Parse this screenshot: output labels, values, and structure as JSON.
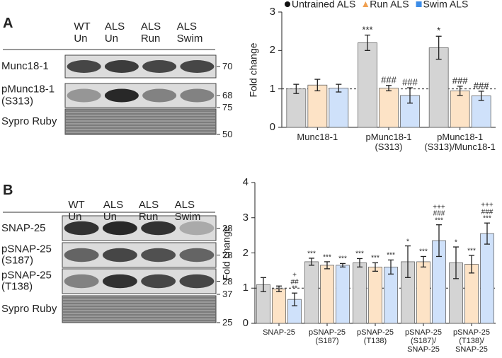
{
  "blots": [
    {
      "panel": "A",
      "lanes": [
        "WT\nUn",
        "ALS\nUn",
        "ALS\nRun",
        "ALS\nSwim"
      ],
      "rows": [
        {
          "label": "Munc18-1",
          "markers": [
            "70"
          ]
        },
        {
          "label": "pMunc18-1\n(S313)",
          "markers": [
            "68"
          ]
        },
        {
          "label": "Sypro Ruby",
          "markers": [
            "75",
            "50"
          ]
        }
      ]
    },
    {
      "panel": "B",
      "lanes": [
        "WT\nUn",
        "ALS\nUn",
        "ALS\nRun",
        "ALS\nSwim"
      ],
      "rows": [
        {
          "label": "SNAP-25",
          "markers": [
            "28"
          ]
        },
        {
          "label": "pSNAP-25\n(S187)",
          "markers": [
            "28"
          ]
        },
        {
          "label": "pSNAP-25\n(T138)",
          "markers": [
            "28"
          ]
        },
        {
          "label": "Sypro Ruby",
          "markers": [
            "37",
            "25"
          ]
        }
      ]
    }
  ],
  "chart_data": [
    {
      "type": "bar",
      "y_label": "Fold change",
      "legend": "top",
      "hline": 1,
      "categories": [
        "Munc18-1",
        "pMunc18-1\n(S313)",
        "pMunc18-1\n(S313)/Munc18-1"
      ],
      "ylim": [
        0,
        3
      ],
      "yticks": [
        0,
        1,
        2,
        3
      ],
      "series": [
        {
          "name": "Untrained ALS",
          "color": "#d4d4d4",
          "marker_color": "#111111",
          "marker": "circle",
          "values": [
            1.0,
            2.2,
            2.07
          ],
          "errors": [
            0.12,
            0.2,
            0.3
          ],
          "annotations": [
            null,
            "***",
            "*"
          ]
        },
        {
          "name": "Run ALS",
          "color": "#fde3c6",
          "marker_color": "#f0a050",
          "marker": "triangle",
          "values": [
            1.1,
            1.02,
            0.95
          ],
          "errors": [
            0.15,
            0.07,
            0.12
          ],
          "annotations": [
            null,
            "###",
            "###"
          ]
        },
        {
          "name": "Swim ALS",
          "color": "#cfe1fa",
          "marker_color": "#3c8ce7",
          "marker": "square",
          "values": [
            1.02,
            0.83,
            0.82
          ],
          "errors": [
            0.1,
            0.2,
            0.12
          ],
          "annotations": [
            null,
            "###",
            "###"
          ]
        }
      ]
    },
    {
      "type": "bar",
      "y_label": "Fold change",
      "hline": 1,
      "categories": [
        "SNAP-25",
        "pSNAP-25\n(S187)",
        "pSNAP-25\n(T138)",
        "pSNAP-25\n(S187)/\nSNAP-25",
        "pSNAP-25\n(T138)/\nSNAP-25"
      ],
      "ylim": [
        0,
        4
      ],
      "yticks": [
        0,
        1,
        2,
        3,
        4
      ],
      "series": [
        {
          "color": "#d4d4d4",
          "marker_color": "#111111",
          "values": [
            1.1,
            1.75,
            1.72,
            1.75,
            1.72
          ],
          "errors": [
            0.2,
            0.1,
            0.12,
            0.45,
            0.45
          ],
          "annotations": [
            null,
            "***",
            "***",
            "*",
            "*"
          ]
        },
        {
          "color": "#fde3c6",
          "marker_color": "#f0a050",
          "values": [
            0.98,
            1.65,
            1.6,
            1.75,
            1.68
          ],
          "errors": [
            0.08,
            0.1,
            0.12,
            0.15,
            0.25
          ],
          "annotations": [
            null,
            "***",
            "***",
            "***",
            "***"
          ]
        },
        {
          "color": "#cfe1fa",
          "marker_color": "#3c8ce7",
          "values": [
            0.68,
            1.65,
            1.6,
            2.35,
            2.55
          ],
          "errors": [
            0.18,
            0.05,
            0.2,
            0.45,
            0.3
          ],
          "annotations": [
            "+\n##\n**",
            "***",
            "***",
            "+++\n###\n***",
            "+++\n###\n***"
          ]
        }
      ]
    }
  ]
}
